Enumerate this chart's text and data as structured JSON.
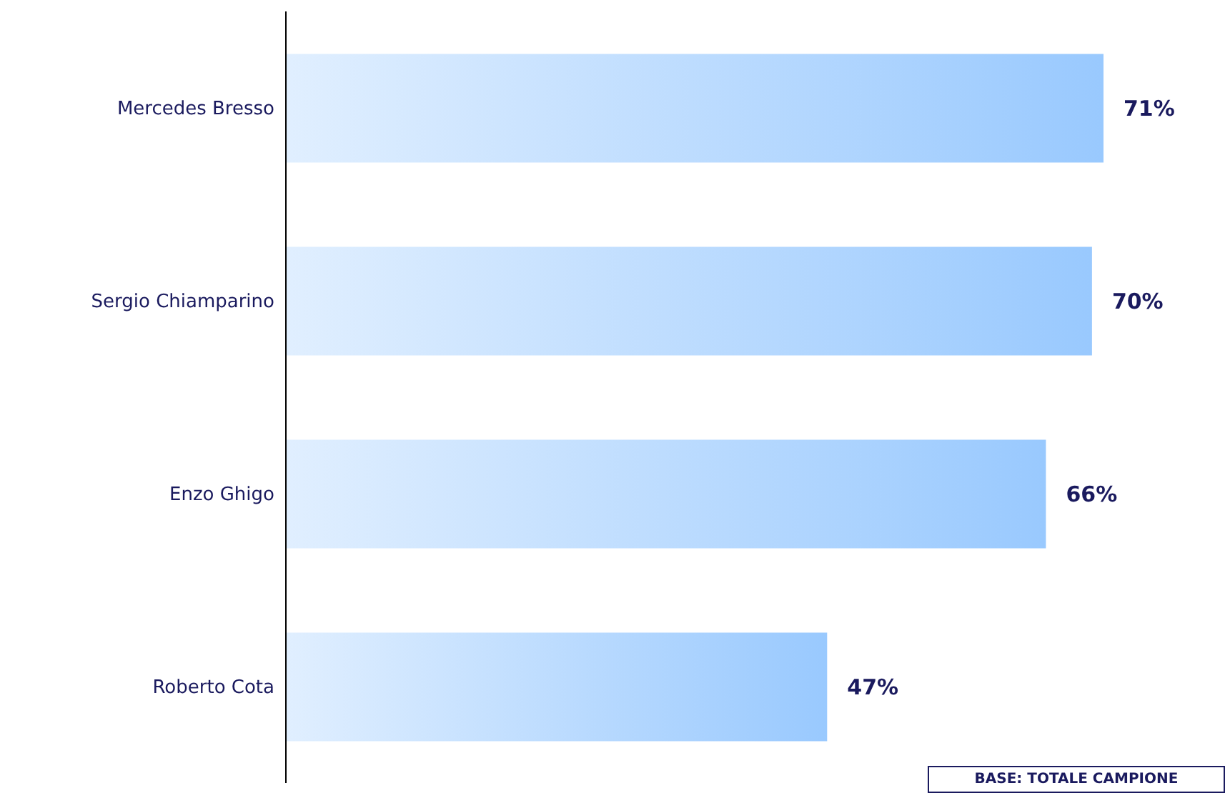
{
  "chart_data": {
    "type": "bar",
    "orientation": "horizontal",
    "categories": [
      "Mercedes Bresso",
      "Sergio Chiamparino",
      "Enzo Ghigo",
      "Roberto Cota"
    ],
    "values": [
      71,
      70,
      66,
      47
    ],
    "value_labels": [
      "71%",
      "70%",
      "66%",
      "47%"
    ],
    "color": "#99c9fe",
    "annotations": [
      "BASE: TOTALE CAMPIONE"
    ]
  }
}
